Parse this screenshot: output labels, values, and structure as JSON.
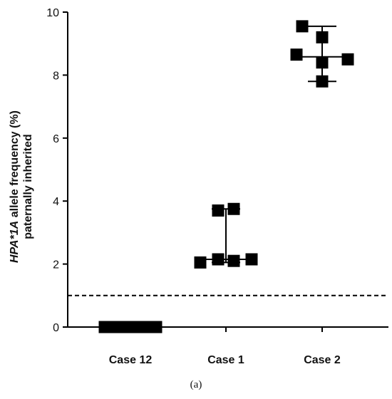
{
  "chart_data": {
    "type": "scatter",
    "ylabel_italic": "HPA*1A",
    "ylabel_rest": " allele frequency (%)",
    "ylabel_line2": "paternally inherited",
    "ylim": [
      0,
      10
    ],
    "yticks": [
      "0",
      "2",
      "4",
      "6",
      "8",
      "10"
    ],
    "categories": [
      "Case 12",
      "Case 1",
      "Case 2"
    ],
    "threshold": 1.0,
    "threshold_style": "dashed",
    "groups": [
      {
        "category": "Case 12",
        "points": [
          0,
          0,
          0,
          0,
          0,
          0
        ],
        "median": 0,
        "range": [
          0,
          0
        ]
      },
      {
        "category": "Case 1",
        "points": [
          2.05,
          2.15,
          2.1,
          2.15,
          3.7,
          3.75
        ],
        "median": 2.15,
        "range": [
          2.05,
          3.75
        ]
      },
      {
        "category": "Case 2",
        "points": [
          9.55,
          9.2,
          8.65,
          8.4,
          8.5,
          7.8
        ],
        "median": 8.58,
        "range": [
          7.8,
          9.55
        ]
      }
    ]
  },
  "caption": "(a)"
}
